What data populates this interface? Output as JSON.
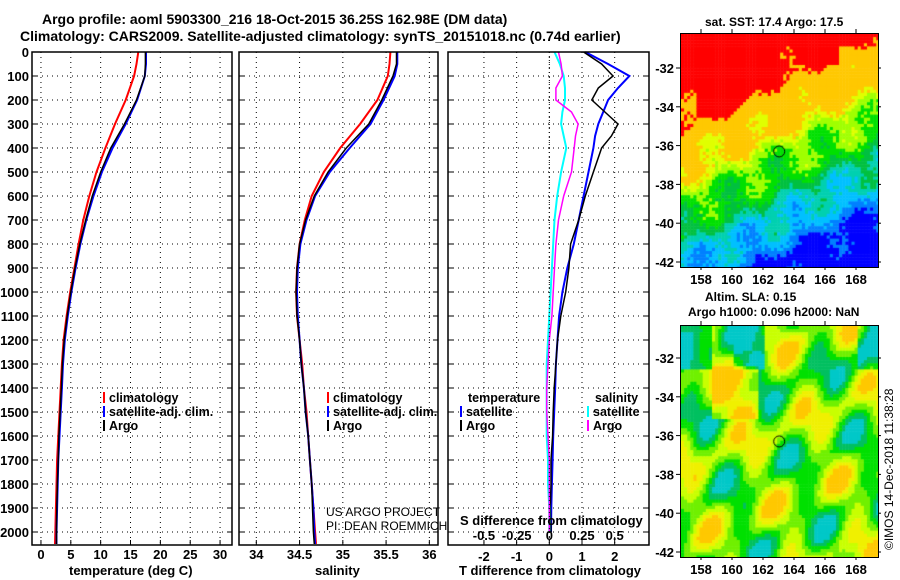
{
  "title": {
    "line1": "Argo profile: aoml 5903300_216 18-Oct-2015 36.25S 162.98E (DM data)",
    "line2": "Climatology: CARS2009. Satellite-adjusted climatology: synTS_20151018.nc (0.74d earlier)"
  },
  "colors": {
    "climatology": "#ff0000",
    "satellite": "#0000ff",
    "argo": "#000000",
    "sat_salinity": "#00ffff",
    "argo_salinity": "#ff00ff"
  },
  "legend_profiles": {
    "climatology": "climatology",
    "satellite": "satellite-adj. clim.",
    "argo": "Argo"
  },
  "legend_diff": {
    "temperature": "temperature",
    "salinity": "salinity",
    "satellite": "satellite",
    "argo": "Argo"
  },
  "credit": {
    "line1": "US ARGO PROJECT",
    "line2": "PI: DEAN ROEMMICH"
  },
  "copyright": "©IMOS 14-Dec-2018 11:38:28",
  "chart_data": [
    {
      "type": "line",
      "id": "temperature",
      "xlabel": "temperature (deg C)",
      "ylabel": "",
      "xlim": [
        -1.5,
        32
      ],
      "ylim": [
        2050,
        0
      ],
      "xticks": [
        0,
        5,
        10,
        15,
        20,
        25,
        30
      ],
      "yticks": [
        0,
        100,
        200,
        300,
        400,
        500,
        600,
        700,
        800,
        900,
        1000,
        1100,
        1200,
        1300,
        1400,
        1500,
        1600,
        1700,
        1800,
        1900,
        2000
      ],
      "depth": [
        0,
        50,
        100,
        200,
        300,
        400,
        500,
        600,
        700,
        800,
        900,
        1000,
        1100,
        1200,
        1300,
        1400,
        1500,
        1600,
        1700,
        1800,
        1900,
        2000,
        2050
      ],
      "series": [
        {
          "name": "climatology",
          "values": [
            16.3,
            16.0,
            15.6,
            14.2,
            12.4,
            10.8,
            9.3,
            8.1,
            7.1,
            6.3,
            5.6,
            4.9,
            4.3,
            3.8,
            3.5,
            3.3,
            3.1,
            2.9,
            2.7,
            2.6,
            2.5,
            2.4,
            2.35
          ]
        },
        {
          "name": "satellite",
          "values": [
            17.6,
            17.6,
            17.4,
            16.1,
            14.2,
            12.0,
            10.2,
            8.8,
            7.6,
            6.6,
            5.8,
            5.1,
            4.5,
            4.0,
            3.7,
            3.5,
            3.3,
            3.1,
            2.9,
            2.8,
            2.7,
            2.6,
            2.6
          ]
        },
        {
          "name": "argo",
          "values": [
            17.5,
            17.5,
            17.4,
            16.0,
            14.0,
            11.7,
            10.0,
            8.6,
            7.5,
            6.5,
            5.7,
            5.0,
            4.4,
            3.9,
            3.6,
            3.4,
            3.2,
            3.0,
            2.9,
            2.75,
            2.65,
            2.6,
            2.6
          ]
        }
      ]
    },
    {
      "type": "line",
      "id": "salinity",
      "xlabel": "salinity",
      "ylabel": "",
      "xlim": [
        33.8,
        36.1
      ],
      "ylim": [
        2050,
        0
      ],
      "xticks": [
        34,
        34.5,
        35,
        35.5,
        36
      ],
      "depth": [
        0,
        50,
        100,
        200,
        300,
        400,
        500,
        600,
        700,
        800,
        900,
        1000,
        1100,
        1200,
        1300,
        1400,
        1500,
        1600,
        1700,
        1800,
        1900,
        2000,
        2050
      ],
      "series": [
        {
          "name": "climatology",
          "values": [
            35.55,
            35.54,
            35.52,
            35.4,
            35.2,
            34.97,
            34.78,
            34.64,
            34.56,
            34.5,
            34.47,
            34.46,
            34.47,
            34.5,
            34.53,
            34.55,
            34.58,
            34.6,
            34.62,
            34.64,
            34.66,
            34.68,
            34.69
          ]
        },
        {
          "name": "satellite",
          "values": [
            35.63,
            35.63,
            35.6,
            35.47,
            35.32,
            35.08,
            34.85,
            34.68,
            34.58,
            34.51,
            34.48,
            34.47,
            34.48,
            34.5,
            34.52,
            34.55,
            34.57,
            34.6,
            34.62,
            34.64,
            34.66,
            34.67,
            34.68
          ]
        },
        {
          "name": "argo",
          "values": [
            35.62,
            35.62,
            35.58,
            35.45,
            35.3,
            35.04,
            34.83,
            34.67,
            34.57,
            34.5,
            34.47,
            34.46,
            34.47,
            34.5,
            34.52,
            34.55,
            34.57,
            34.6,
            34.62,
            34.64,
            34.65,
            34.66,
            34.67
          ]
        }
      ]
    },
    {
      "type": "line",
      "id": "difference",
      "xlabel": "T difference from climatology",
      "x2label": "S difference from climatology",
      "xlim": [
        -3.1,
        3.05
      ],
      "ylim": [
        2050,
        0
      ],
      "xticks": [
        -2,
        -1,
        0,
        1,
        2
      ],
      "x2ticks": [
        -0.5,
        -0.25,
        0,
        0.25,
        0.5
      ],
      "depth": [
        0,
        50,
        100,
        150,
        200,
        250,
        300,
        350,
        400,
        500,
        600,
        700,
        800,
        900,
        1000,
        1100,
        1200,
        1300,
        1400,
        1500,
        1600,
        1700,
        1800,
        1900,
        2000
      ],
      "series": [
        {
          "name": "temperature satellite",
          "axis": "T",
          "values": [
            1.1,
            1.8,
            2.45,
            2.1,
            1.8,
            1.65,
            1.5,
            1.4,
            1.35,
            1.2,
            1.05,
            0.9,
            0.75,
            0.55,
            0.4,
            0.3,
            0.25,
            0.2,
            0.18,
            0.15,
            0.12,
            0.1,
            0.08,
            0.06,
            0.05
          ]
        },
        {
          "name": "temperature Argo",
          "axis": "T",
          "values": [
            1.05,
            1.6,
            1.95,
            1.5,
            1.3,
            1.7,
            2.1,
            1.9,
            1.6,
            1.35,
            1.1,
            0.9,
            0.65,
            0.6,
            0.5,
            0.35,
            0.25,
            0.2,
            0.15,
            0.12,
            0.1,
            0.05,
            0.05,
            0.03,
            0.05
          ]
        },
        {
          "name": "salinity satellite",
          "axis": "S",
          "values": [
            0.04,
            0.08,
            0.11,
            0.12,
            0.12,
            0.1,
            0.09,
            0.11,
            0.13,
            0.09,
            0.06,
            0.04,
            0.03,
            0.02,
            0.01,
            0.0,
            -0.01,
            -0.02,
            -0.02,
            -0.02,
            -0.02,
            -0.01,
            -0.01,
            0.0,
            0.0
          ]
        },
        {
          "name": "salinity Argo",
          "axis": "S",
          "values": [
            0.07,
            0.09,
            0.1,
            0.05,
            0.05,
            0.17,
            0.22,
            0.2,
            0.19,
            0.17,
            0.11,
            0.07,
            0.05,
            0.04,
            0.03,
            0.02,
            0.0,
            -0.01,
            -0.02,
            -0.02,
            -0.01,
            0.0,
            0.0,
            0.0,
            0.0
          ]
        }
      ]
    },
    {
      "type": "heatmap",
      "id": "sst_map",
      "title": "sat. SST: 17.4 Argo: 17.5",
      "sat_sst": 17.4,
      "argo_sst": 17.5,
      "xlim": [
        156.8,
        169.5
      ],
      "ylim": [
        -42.4,
        -30.2
      ],
      "xticks": [
        158,
        160,
        162,
        164,
        166,
        168
      ],
      "yticks": [
        -32,
        -34,
        -36,
        -38,
        -40,
        -42
      ],
      "profile_location": {
        "lon": 162.98,
        "lat": -36.25
      }
    },
    {
      "type": "heatmap",
      "id": "sla_map",
      "title_line1": "Altim. SLA: 0.15",
      "title_line2": "Argo h1000: 0.096 h2000: NaN",
      "sla": 0.15,
      "h1000": 0.096,
      "h2000": "NaN",
      "xlim": [
        156.8,
        169.5
      ],
      "ylim": [
        -42.4,
        -30.4
      ],
      "xticks": [
        158,
        160,
        162,
        164,
        166,
        168
      ],
      "yticks": [
        -32,
        -34,
        -36,
        -38,
        -40,
        -42
      ],
      "profile_location": {
        "lon": 162.98,
        "lat": -36.25
      }
    }
  ]
}
